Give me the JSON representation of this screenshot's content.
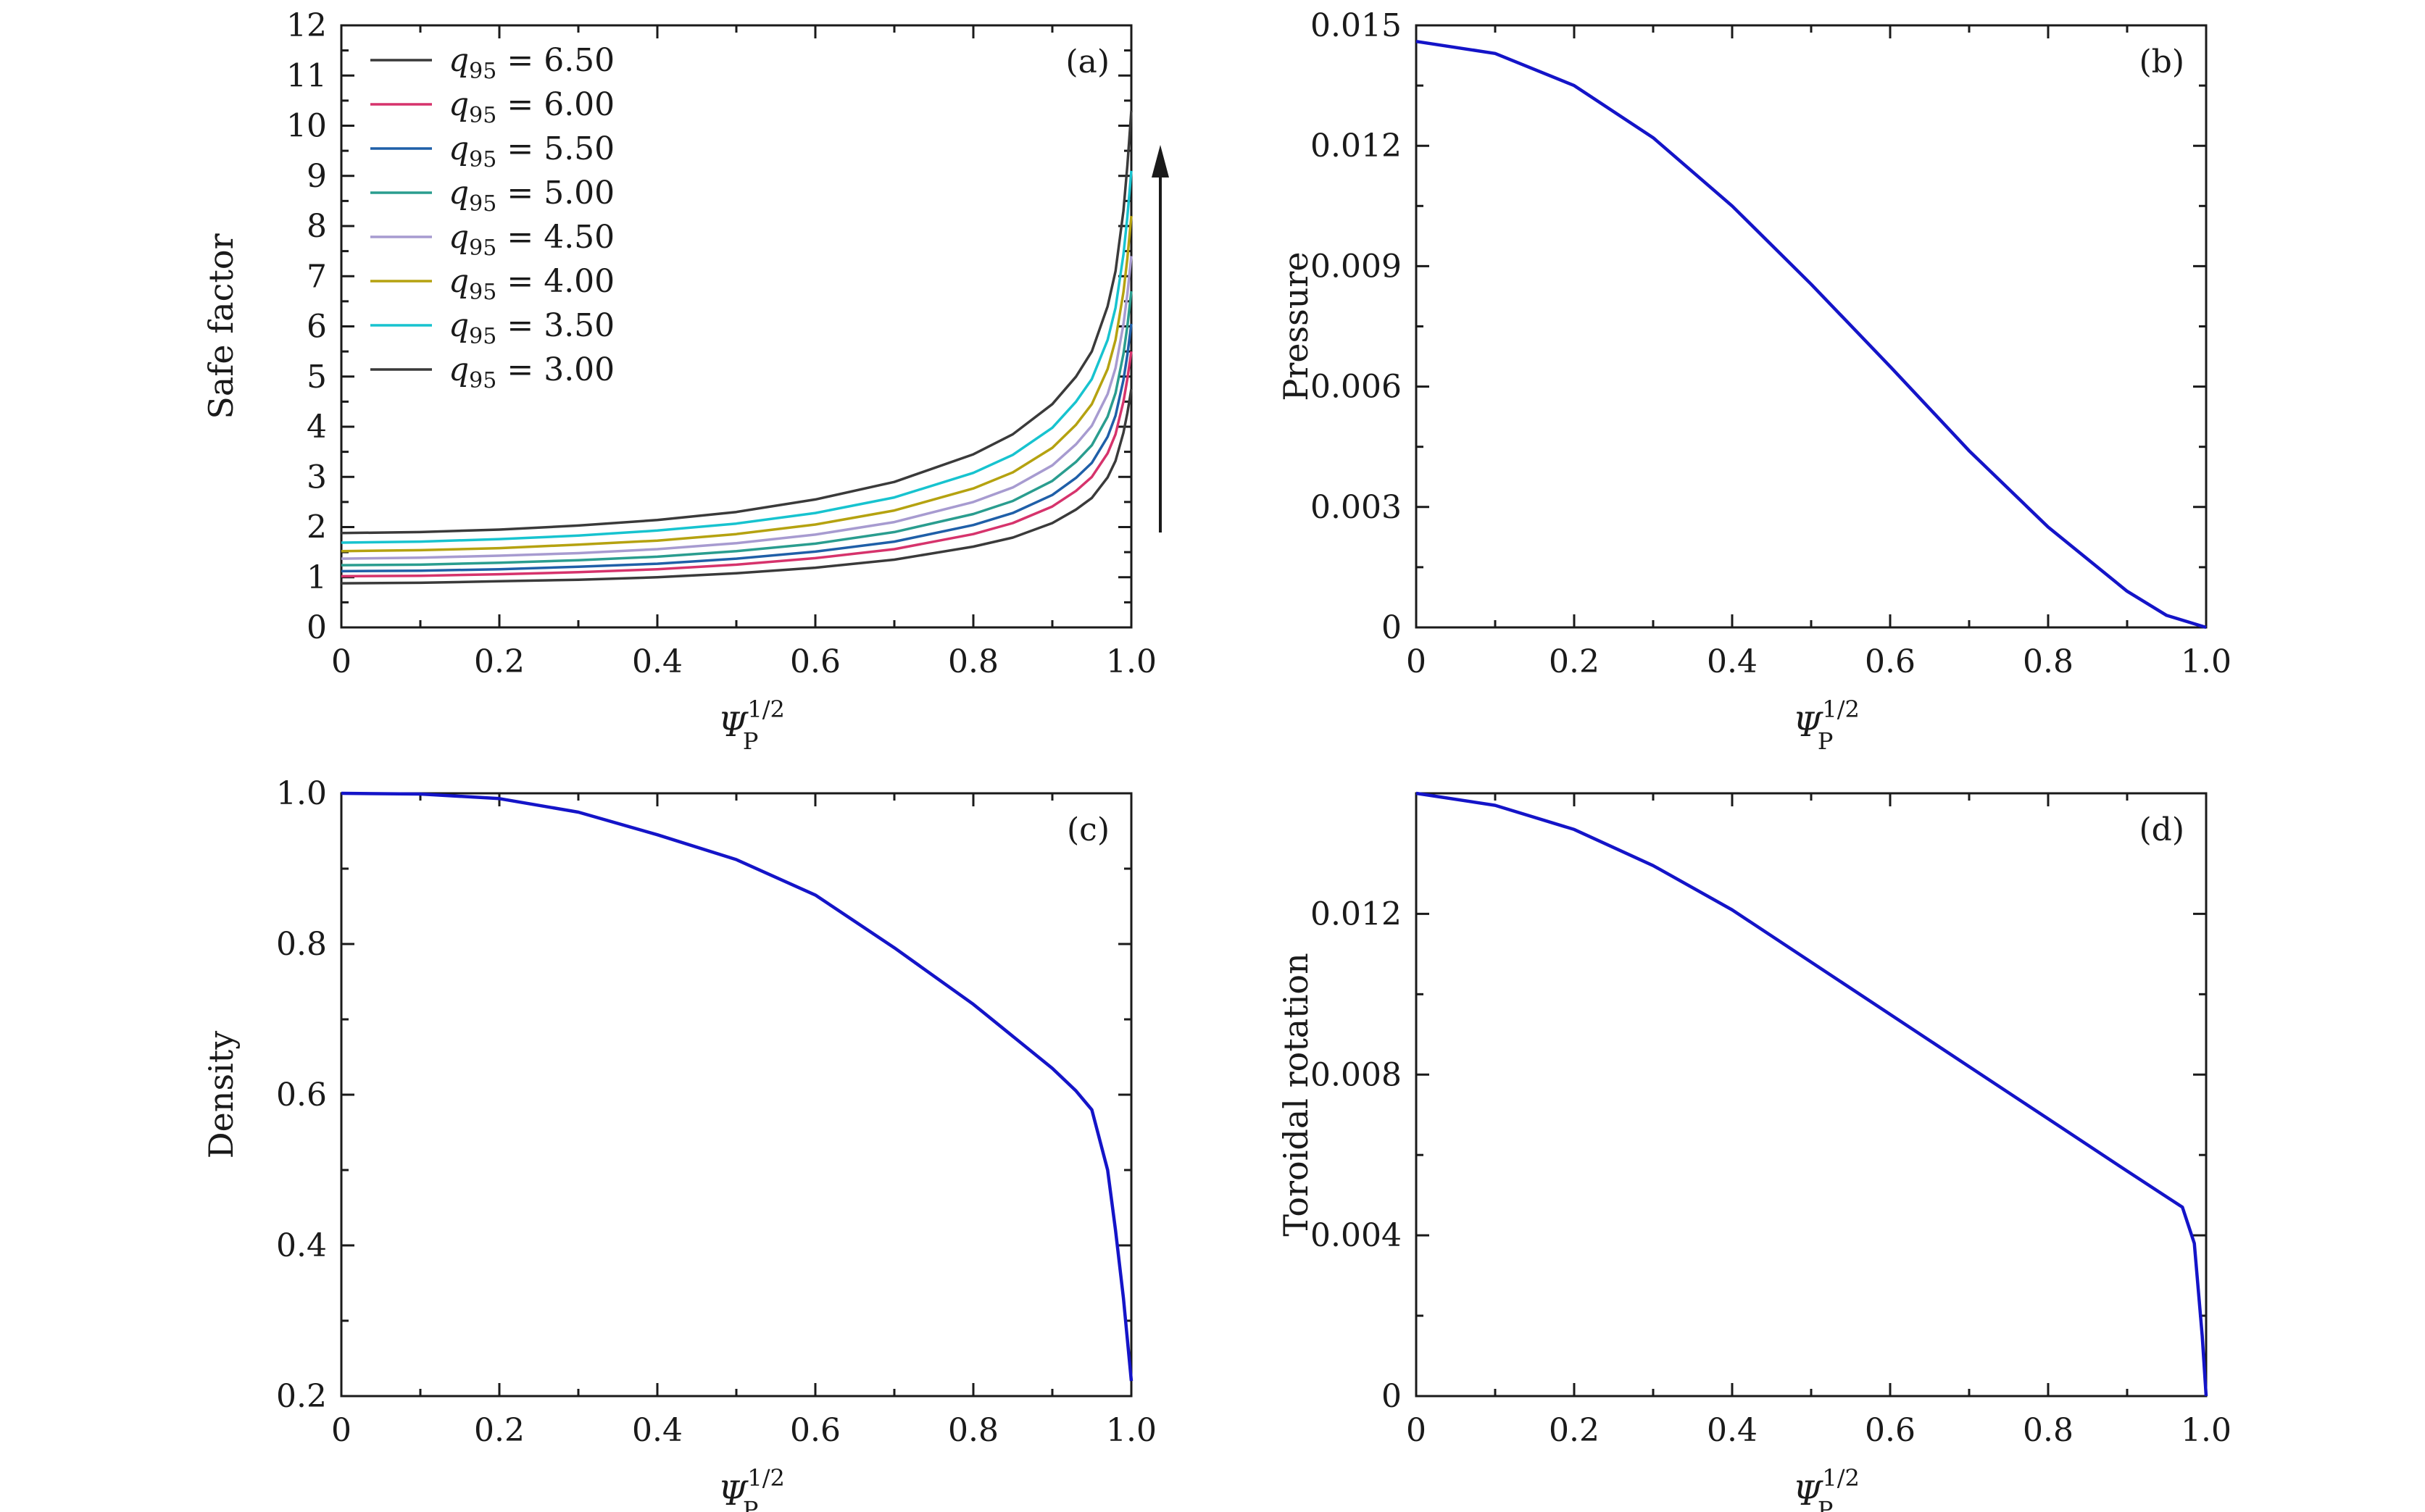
{
  "chart_data": [
    {
      "panel": "(a)",
      "type": "line",
      "ylabel": "Safe factor",
      "xlabel": {
        "base": "Ψ",
        "sub": "P",
        "sup": "1/2"
      },
      "xlim": [
        0,
        1
      ],
      "ylim": [
        0,
        12
      ],
      "xticks": [
        "0",
        "0.2",
        "0.4",
        "0.6",
        "0.8",
        "1.0"
      ],
      "yticks": [
        "0",
        "1",
        "2",
        "3",
        "4",
        "5",
        "6",
        "7",
        "8",
        "9",
        "10",
        "11",
        "12"
      ],
      "legend_position": "top-left",
      "annotation": "upward arrow indicating increasing q95",
      "x": [
        0,
        0.1,
        0.2,
        0.3,
        0.4,
        0.5,
        0.6,
        0.7,
        0.8,
        0.85,
        0.9,
        0.93,
        0.95,
        0.97,
        0.98,
        0.99,
        0.995,
        1.0
      ],
      "series": [
        {
          "name": "q95 = 6.50",
          "legend": {
            "q": "q",
            "sub": "95",
            "rest": " = 6.50"
          },
          "color": "#3a3a3a",
          "values": [
            1.88,
            1.9,
            1.95,
            2.03,
            2.14,
            2.3,
            2.55,
            2.9,
            3.45,
            3.85,
            4.45,
            5.0,
            5.5,
            6.4,
            7.1,
            8.3,
            9.2,
            10.3
          ]
        },
        {
          "name": "q95 = 6.00",
          "legend": {
            "q": "q",
            "sub": "95",
            "rest": " = 6.00"
          },
          "color": "#d6336c",
          "values": [
            1.02,
            1.03,
            1.06,
            1.1,
            1.16,
            1.25,
            1.38,
            1.56,
            1.86,
            2.08,
            2.41,
            2.72,
            3.0,
            3.47,
            3.85,
            4.5,
            4.95,
            5.5
          ]
        },
        {
          "name": "q95 = 5.50",
          "legend": {
            "q": "q",
            "sub": "95",
            "rest": " = 5.50"
          },
          "color": "#1f5fa8",
          "values": [
            1.12,
            1.13,
            1.16,
            1.21,
            1.27,
            1.37,
            1.51,
            1.71,
            2.04,
            2.28,
            2.64,
            2.98,
            3.28,
            3.8,
            4.22,
            4.93,
            5.43,
            6.05
          ]
        },
        {
          "name": "q95 = 5.00",
          "legend": {
            "q": "q",
            "sub": "95",
            "rest": " = 5.00"
          },
          "color": "#2a9d8f",
          "values": [
            1.24,
            1.25,
            1.29,
            1.34,
            1.41,
            1.52,
            1.67,
            1.9,
            2.26,
            2.52,
            2.92,
            3.3,
            3.63,
            4.2,
            4.67,
            5.45,
            6.0,
            6.7
          ]
        },
        {
          "name": "q95 = 4.50",
          "legend": {
            "q": "q",
            "sub": "95",
            "rest": " = 4.50"
          },
          "color": "#a79bd0",
          "values": [
            1.37,
            1.39,
            1.43,
            1.48,
            1.56,
            1.68,
            1.85,
            2.1,
            2.5,
            2.79,
            3.23,
            3.65,
            4.02,
            4.65,
            5.17,
            6.04,
            6.64,
            7.4
          ]
        },
        {
          "name": "q95 = 4.00",
          "legend": {
            "q": "q",
            "sub": "95",
            "rest": " = 4.00"
          },
          "color": "#b5a210",
          "values": [
            1.52,
            1.54,
            1.58,
            1.65,
            1.73,
            1.86,
            2.05,
            2.33,
            2.77,
            3.09,
            3.58,
            4.04,
            4.45,
            5.15,
            5.73,
            6.68,
            7.35,
            8.2
          ]
        },
        {
          "name": "q95 = 3.50",
          "legend": {
            "q": "q",
            "sub": "95",
            "rest": " = 3.50"
          },
          "color": "#17c3cf",
          "values": [
            1.69,
            1.71,
            1.76,
            1.83,
            1.93,
            2.07,
            2.28,
            2.59,
            3.08,
            3.44,
            3.98,
            4.5,
            4.95,
            5.73,
            6.37,
            7.43,
            8.18,
            9.1
          ]
        },
        {
          "name": "q95 = 3.00",
          "legend": {
            "q": "q",
            "sub": "95",
            "rest": " = 3.00"
          },
          "color": "#3a3a3a",
          "values": [
            0.88,
            0.89,
            0.92,
            0.95,
            1.0,
            1.08,
            1.19,
            1.35,
            1.61,
            1.79,
            2.08,
            2.35,
            2.58,
            2.99,
            3.32,
            3.88,
            4.27,
            4.75
          ]
        }
      ]
    },
    {
      "panel": "(b)",
      "type": "line",
      "ylabel": "Pressure",
      "xlabel": {
        "base": "Ψ",
        "sub": "P",
        "sup": "1/2"
      },
      "xlim": [
        0,
        1
      ],
      "ylim": [
        0,
        0.015
      ],
      "xticks": [
        "0",
        "0.2",
        "0.4",
        "0.6",
        "0.8",
        "1.0"
      ],
      "yticks": [
        "0",
        "0.003",
        "0.006",
        "0.009",
        "0.012",
        "0.015"
      ],
      "series": [
        {
          "color": "#1414c8",
          "x": [
            0,
            0.1,
            0.2,
            0.3,
            0.4,
            0.5,
            0.6,
            0.7,
            0.8,
            0.9,
            0.95,
            1.0
          ],
          "values": [
            0.0146,
            0.0143,
            0.0135,
            0.0122,
            0.0105,
            0.00855,
            0.0065,
            0.0044,
            0.0025,
            0.0009,
            0.0003,
            0.0
          ]
        }
      ]
    },
    {
      "panel": "(c)",
      "type": "line",
      "ylabel": "Density",
      "xlabel": {
        "base": "Ψ",
        "sub": "P",
        "sup": "1/2"
      },
      "xlim": [
        0,
        1
      ],
      "ylim": [
        0.2,
        1.0
      ],
      "xticks": [
        "0",
        "0.2",
        "0.4",
        "0.6",
        "0.8",
        "1.0"
      ],
      "yticks": [
        "0.2",
        "0.4",
        "0.6",
        "0.8",
        "1.0"
      ],
      "series": [
        {
          "color": "#1414c8",
          "x": [
            0,
            0.1,
            0.2,
            0.3,
            0.4,
            0.5,
            0.6,
            0.7,
            0.8,
            0.9,
            0.93,
            0.95,
            0.97,
            0.98,
            0.99,
            1.0
          ],
          "values": [
            1.0,
            0.999,
            0.993,
            0.975,
            0.945,
            0.912,
            0.865,
            0.795,
            0.72,
            0.635,
            0.605,
            0.58,
            0.5,
            0.42,
            0.33,
            0.22
          ]
        }
      ]
    },
    {
      "panel": "(d)",
      "type": "line",
      "ylabel": "Toroidal rotation",
      "xlabel": {
        "base": "Ψ",
        "sub": "P",
        "sup": "1/2"
      },
      "xlim": [
        0,
        1
      ],
      "ylim": [
        0,
        0.015
      ],
      "xticks": [
        "0",
        "0.2",
        "0.4",
        "0.6",
        "0.8",
        "1.0"
      ],
      "yticks": [
        "0",
        "0.004",
        "0.008",
        "0.012"
      ],
      "series": [
        {
          "color": "#1414c8",
          "x": [
            0,
            0.1,
            0.2,
            0.3,
            0.4,
            0.5,
            0.6,
            0.7,
            0.8,
            0.9,
            0.97,
            0.985,
            0.995,
            1.0
          ],
          "values": [
            0.015,
            0.0147,
            0.0141,
            0.0132,
            0.0121,
            0.0108,
            0.0095,
            0.0082,
            0.0069,
            0.0056,
            0.0047,
            0.0038,
            0.0015,
            0.0
          ]
        }
      ]
    }
  ]
}
